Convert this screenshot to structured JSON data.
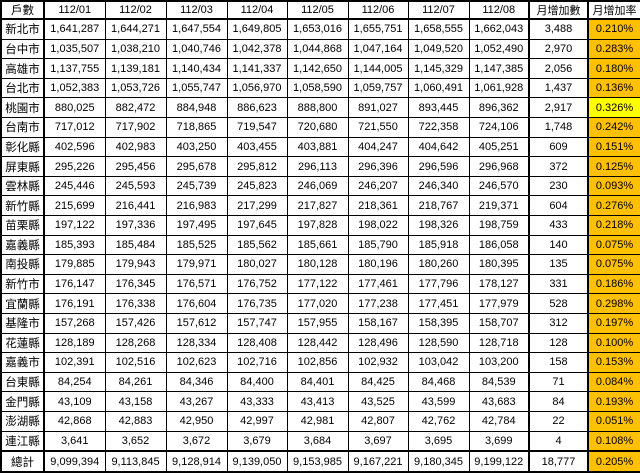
{
  "colors": {
    "rate_background": "#ffc000",
    "rate_max_background": "#ffff00",
    "grid_border": "#000000",
    "cell_background": "#ffffff",
    "text": "#000000"
  },
  "table": {
    "corner_header": "戶數",
    "columns": [
      "112/01",
      "112/02",
      "112/03",
      "112/04",
      "112/05",
      "112/06",
      "112/07",
      "112/08"
    ],
    "delta_header": "月增加數",
    "rate_header": "月增加率",
    "rows": [
      {
        "label": "新北市",
        "values": [
          "1,641,287",
          "1,644,271",
          "1,647,554",
          "1,649,805",
          "1,653,016",
          "1,655,751",
          "1,658,555",
          "1,662,043"
        ],
        "delta": "3,488",
        "rate": "0.210%",
        "rate_max": false
      },
      {
        "label": "台中市",
        "values": [
          "1,035,507",
          "1,038,210",
          "1,040,746",
          "1,042,378",
          "1,044,868",
          "1,047,164",
          "1,049,520",
          "1,052,490"
        ],
        "delta": "2,970",
        "rate": "0.283%",
        "rate_max": false
      },
      {
        "label": "高雄市",
        "values": [
          "1,137,755",
          "1,139,181",
          "1,140,434",
          "1,141,337",
          "1,142,650",
          "1,144,005",
          "1,145,329",
          "1,147,385"
        ],
        "delta": "2,056",
        "rate": "0.180%",
        "rate_max": false
      },
      {
        "label": "台北市",
        "values": [
          "1,052,383",
          "1,053,726",
          "1,055,747",
          "1,056,970",
          "1,058,590",
          "1,059,757",
          "1,060,491",
          "1,061,928"
        ],
        "delta": "1,437",
        "rate": "0.136%",
        "rate_max": false
      },
      {
        "label": "桃園市",
        "values": [
          "880,025",
          "882,472",
          "884,948",
          "886,623",
          "888,800",
          "891,027",
          "893,445",
          "896,362"
        ],
        "delta": "2,917",
        "rate": "0.326%",
        "rate_max": true
      },
      {
        "label": "台南市",
        "values": [
          "717,012",
          "717,902",
          "718,865",
          "719,547",
          "720,680",
          "721,550",
          "722,358",
          "724,106"
        ],
        "delta": "1,748",
        "rate": "0.242%",
        "rate_max": false
      },
      {
        "label": "彰化縣",
        "values": [
          "402,596",
          "402,983",
          "403,250",
          "403,455",
          "403,881",
          "404,247",
          "404,642",
          "405,251"
        ],
        "delta": "609",
        "rate": "0.151%",
        "rate_max": false
      },
      {
        "label": "屏東縣",
        "values": [
          "295,226",
          "295,456",
          "295,678",
          "295,812",
          "296,113",
          "296,396",
          "296,596",
          "296,968"
        ],
        "delta": "372",
        "rate": "0.125%",
        "rate_max": false
      },
      {
        "label": "雲林縣",
        "values": [
          "245,446",
          "245,593",
          "245,739",
          "245,823",
          "246,069",
          "246,207",
          "246,340",
          "246,570"
        ],
        "delta": "230",
        "rate": "0.093%",
        "rate_max": false
      },
      {
        "label": "新竹縣",
        "values": [
          "215,699",
          "216,441",
          "216,983",
          "217,299",
          "217,827",
          "218,361",
          "218,767",
          "219,371"
        ],
        "delta": "604",
        "rate": "0.276%",
        "rate_max": false
      },
      {
        "label": "苗栗縣",
        "values": [
          "197,122",
          "197,336",
          "197,495",
          "197,645",
          "197,828",
          "198,022",
          "198,326",
          "198,759"
        ],
        "delta": "433",
        "rate": "0.218%",
        "rate_max": false
      },
      {
        "label": "嘉義縣",
        "values": [
          "185,393",
          "185,484",
          "185,525",
          "185,562",
          "185,661",
          "185,790",
          "185,918",
          "186,058"
        ],
        "delta": "140",
        "rate": "0.075%",
        "rate_max": false
      },
      {
        "label": "南投縣",
        "values": [
          "179,885",
          "179,943",
          "179,971",
          "180,027",
          "180,128",
          "180,196",
          "180,260",
          "180,395"
        ],
        "delta": "135",
        "rate": "0.075%",
        "rate_max": false
      },
      {
        "label": "新竹市",
        "values": [
          "176,147",
          "176,345",
          "176,571",
          "176,752",
          "177,122",
          "177,461",
          "177,796",
          "178,127"
        ],
        "delta": "331",
        "rate": "0.186%",
        "rate_max": false
      },
      {
        "label": "宜蘭縣",
        "values": [
          "176,191",
          "176,338",
          "176,604",
          "176,735",
          "177,020",
          "177,238",
          "177,451",
          "177,979"
        ],
        "delta": "528",
        "rate": "0.298%",
        "rate_max": false
      },
      {
        "label": "基隆市",
        "values": [
          "157,268",
          "157,426",
          "157,612",
          "157,747",
          "157,955",
          "158,167",
          "158,395",
          "158,707"
        ],
        "delta": "312",
        "rate": "0.197%",
        "rate_max": false
      },
      {
        "label": "花蓮縣",
        "values": [
          "128,189",
          "128,268",
          "128,334",
          "128,408",
          "128,442",
          "128,496",
          "128,590",
          "128,718"
        ],
        "delta": "128",
        "rate": "0.100%",
        "rate_max": false
      },
      {
        "label": "嘉義市",
        "values": [
          "102,391",
          "102,516",
          "102,623",
          "102,716",
          "102,856",
          "102,932",
          "103,042",
          "103,200"
        ],
        "delta": "158",
        "rate": "0.153%",
        "rate_max": false
      },
      {
        "label": "台東縣",
        "values": [
          "84,254",
          "84,261",
          "84,346",
          "84,400",
          "84,401",
          "84,425",
          "84,468",
          "84,539"
        ],
        "delta": "71",
        "rate": "0.084%",
        "rate_max": false
      },
      {
        "label": "金門縣",
        "values": [
          "43,109",
          "43,158",
          "43,267",
          "43,333",
          "43,413",
          "43,525",
          "43,599",
          "43,683"
        ],
        "delta": "84",
        "rate": "0.193%",
        "rate_max": false
      },
      {
        "label": "澎湖縣",
        "values": [
          "42,868",
          "42,883",
          "42,950",
          "42,997",
          "42,981",
          "42,807",
          "42,762",
          "42,784"
        ],
        "delta": "22",
        "rate": "0.051%",
        "rate_max": false
      },
      {
        "label": "連江縣",
        "values": [
          "3,641",
          "3,652",
          "3,672",
          "3,679",
          "3,684",
          "3,697",
          "3,695",
          "3,699"
        ],
        "delta": "4",
        "rate": "0.108%",
        "rate_max": false
      }
    ],
    "total": {
      "label": "總計",
      "values": [
        "9,099,394",
        "9,113,845",
        "9,128,914",
        "9,139,050",
        "9,153,985",
        "9,167,221",
        "9,180,345",
        "9,199,122"
      ],
      "delta": "18,777",
      "rate": "0.205%"
    }
  }
}
